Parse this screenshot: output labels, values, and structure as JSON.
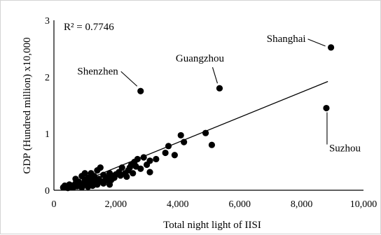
{
  "chart_data": {
    "type": "scatter",
    "title": "",
    "xlabel": "Total night light  of  IISI",
    "ylabel": "GDP  (Hundred million)  x10,000",
    "xlim": [
      0,
      10000
    ],
    "ylim": [
      0,
      3
    ],
    "x_ticks": [
      "0",
      "2,000",
      "4,000",
      "6,000",
      "8,000",
      "10,000"
    ],
    "x_tick_values": [
      0,
      2000,
      4000,
      6000,
      8000,
      10000
    ],
    "y_ticks": [
      "0",
      "1",
      "2",
      "3"
    ],
    "y_tick_values": [
      0,
      1,
      2,
      3
    ],
    "r2_label": "R² = 0.7746",
    "grid": false,
    "legend": "none",
    "trendline": {
      "x": [
        300,
        8850
      ],
      "y": [
        0.02,
        1.92
      ]
    },
    "labeled_points": [
      {
        "name": "Shanghai",
        "x": 8950,
        "y": 2.52,
        "label_side": "left"
      },
      {
        "name": "Guangzhou",
        "x": 5350,
        "y": 1.8,
        "label_side": "above"
      },
      {
        "name": "Shenzhen",
        "x": 2800,
        "y": 1.75,
        "label_side": "upper-left"
      },
      {
        "name": "Suzhou",
        "x": 8800,
        "y": 1.45,
        "label_side": "below"
      }
    ],
    "points": [
      {
        "x": 4900,
        "y": 1.01
      },
      {
        "x": 5100,
        "y": 0.8
      },
      {
        "x": 4100,
        "y": 0.97
      },
      {
        "x": 4200,
        "y": 0.85
      },
      {
        "x": 3900,
        "y": 0.62
      },
      {
        "x": 3700,
        "y": 0.78
      },
      {
        "x": 3600,
        "y": 0.66
      },
      {
        "x": 3300,
        "y": 0.55
      },
      {
        "x": 3100,
        "y": 0.52
      },
      {
        "x": 3000,
        "y": 0.45
      },
      {
        "x": 2900,
        "y": 0.58
      },
      {
        "x": 2700,
        "y": 0.55
      },
      {
        "x": 2600,
        "y": 0.5
      },
      {
        "x": 2500,
        "y": 0.45
      },
      {
        "x": 2800,
        "y": 0.38
      },
      {
        "x": 3100,
        "y": 0.32
      },
      {
        "x": 2400,
        "y": 0.35
      },
      {
        "x": 2200,
        "y": 0.4
      },
      {
        "x": 2300,
        "y": 0.3
      },
      {
        "x": 2100,
        "y": 0.32
      },
      {
        "x": 2000,
        "y": 0.28
      },
      {
        "x": 1900,
        "y": 0.25
      },
      {
        "x": 1800,
        "y": 0.3
      },
      {
        "x": 1700,
        "y": 0.22
      },
      {
        "x": 1600,
        "y": 0.27
      },
      {
        "x": 1500,
        "y": 0.4
      },
      {
        "x": 1400,
        "y": 0.35
      },
      {
        "x": 1300,
        "y": 0.25
      },
      {
        "x": 1200,
        "y": 0.3
      },
      {
        "x": 1100,
        "y": 0.22
      },
      {
        "x": 1000,
        "y": 0.18
      },
      {
        "x": 900,
        "y": 0.25
      },
      {
        "x": 800,
        "y": 0.15
      },
      {
        "x": 700,
        "y": 0.12
      },
      {
        "x": 600,
        "y": 0.08
      },
      {
        "x": 500,
        "y": 0.1
      },
      {
        "x": 400,
        "y": 0.06
      },
      {
        "x": 300,
        "y": 0.05
      },
      {
        "x": 350,
        "y": 0.08
      },
      {
        "x": 450,
        "y": 0.04
      },
      {
        "x": 550,
        "y": 0.05
      },
      {
        "x": 650,
        "y": 0.06
      },
      {
        "x": 750,
        "y": 0.07
      },
      {
        "x": 850,
        "y": 0.09
      },
      {
        "x": 950,
        "y": 0.1
      },
      {
        "x": 1050,
        "y": 0.12
      },
      {
        "x": 1150,
        "y": 0.14
      },
      {
        "x": 1250,
        "y": 0.16
      },
      {
        "x": 1350,
        "y": 0.18
      },
      {
        "x": 1450,
        "y": 0.2
      },
      {
        "x": 1550,
        "y": 0.15
      },
      {
        "x": 1650,
        "y": 0.17
      },
      {
        "x": 1750,
        "y": 0.2
      },
      {
        "x": 1850,
        "y": 0.18
      },
      {
        "x": 1950,
        "y": 0.22
      },
      {
        "x": 1250,
        "y": 0.08
      },
      {
        "x": 1100,
        "y": 0.06
      },
      {
        "x": 900,
        "y": 0.05
      },
      {
        "x": 1400,
        "y": 0.1
      },
      {
        "x": 1600,
        "y": 0.12
      },
      {
        "x": 2150,
        "y": 0.26
      },
      {
        "x": 2350,
        "y": 0.24
      },
      {
        "x": 2450,
        "y": 0.4
      },
      {
        "x": 2650,
        "y": 0.42
      },
      {
        "x": 2550,
        "y": 0.3
      },
      {
        "x": 1000,
        "y": 0.3
      },
      {
        "x": 700,
        "y": 0.2
      },
      {
        "x": 1200,
        "y": 0.2
      },
      {
        "x": 1800,
        "y": 0.1
      }
    ]
  }
}
